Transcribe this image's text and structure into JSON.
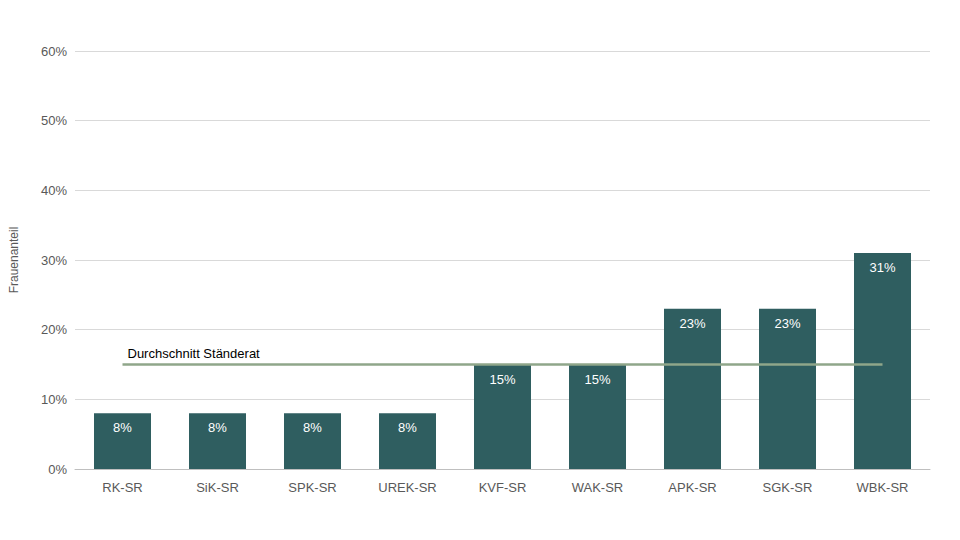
{
  "chart_data": {
    "type": "bar",
    "y_label": "Frauenanteil",
    "categories": [
      "RK-SR",
      "SiK-SR",
      "SPK-SR",
      "UREK-SR",
      "KVF-SR",
      "WAK-SR",
      "APK-SR",
      "SGK-SR",
      "WBK-SR"
    ],
    "values": [
      8,
      8,
      8,
      8,
      15,
      15,
      23,
      23,
      31
    ],
    "value_labels": [
      "8%",
      "8%",
      "8%",
      "8%",
      "15%",
      "15%",
      "23%",
      "23%",
      "31%"
    ],
    "color": "#2f5e60",
    "data_labels": true,
    "reference_line": {
      "label": "Durchschnitt Ständerat",
      "value": 15,
      "color": "#8fa68a"
    },
    "ylim": [
      0,
      60
    ],
    "yticks": [
      {
        "value": 0,
        "label": "0%"
      },
      {
        "value": 10,
        "label": "10%"
      },
      {
        "value": 20,
        "label": "20%"
      },
      {
        "value": 30,
        "label": "30%"
      },
      {
        "value": 40,
        "label": "40%"
      },
      {
        "value": 50,
        "label": "50%"
      },
      {
        "value": 60,
        "label": "60%"
      }
    ],
    "grid": true
  }
}
